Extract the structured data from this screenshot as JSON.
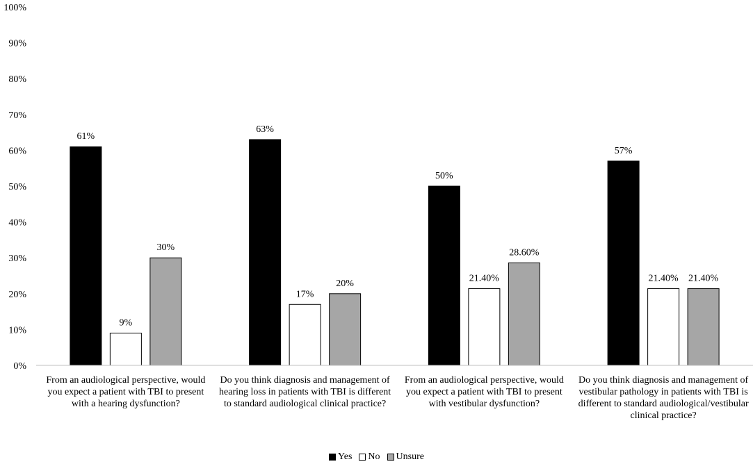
{
  "chart_data": {
    "type": "bar",
    "categories": [
      "From an audiological perspective, would you expect a patient with TBI to present with a hearing dysfunction?",
      "Do you think diagnosis and management of hearing loss in patients with TBI is different to standard audiological clinical practice?",
      "From an audiological perspective, would you expect a patient with TBI to present with vestibular dysfunction?",
      "Do you think diagnosis and management of vestibular pathology in patients with TBI is different to standard audiological/vestibular clinical practice?"
    ],
    "series": [
      {
        "name": "Yes",
        "color": "#000000",
        "values": [
          61,
          63,
          50,
          57
        ],
        "labels": [
          "61%",
          "63%",
          "50%",
          "57%"
        ]
      },
      {
        "name": "No",
        "color": "#ffffff",
        "values": [
          9,
          17,
          21.4,
          21.4
        ],
        "labels": [
          "9%",
          "17%",
          "21.40%",
          "21.40%"
        ]
      },
      {
        "name": "Unsure",
        "color": "#a6a6a6",
        "values": [
          30,
          20,
          28.6,
          21.4
        ],
        "labels": [
          "30%",
          "20%",
          "28.60%",
          "21.40%"
        ]
      }
    ],
    "y_ticks": [
      "0%",
      "10%",
      "20%",
      "30%",
      "40%",
      "50%",
      "60%",
      "70%",
      "80%",
      "90%",
      "100%"
    ],
    "ylim": [
      0,
      100
    ],
    "grid": false,
    "legend": "bottom",
    "title": "",
    "xlabel": "",
    "ylabel": ""
  }
}
